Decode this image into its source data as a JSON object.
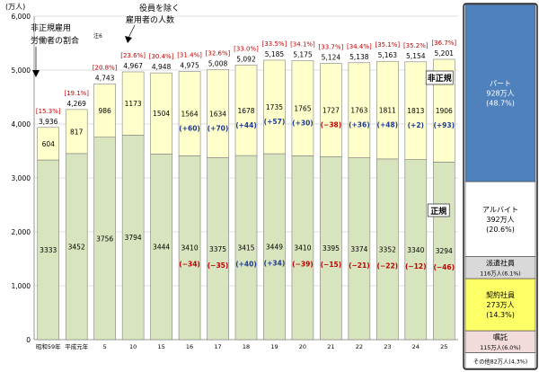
{
  "chart_data": {
    "type": "bar",
    "unit_label": "(万人)",
    "ylim": [
      0,
      6000
    ],
    "y_ticks": [
      "0",
      "1,000",
      "2,000",
      "3,000",
      "4,000",
      "5,000",
      "6,000"
    ],
    "categories": [
      "昭和59年",
      "平成元年",
      "5",
      "10",
      "15",
      "16",
      "17",
      "18",
      "19",
      "20",
      "21",
      "22",
      "23",
      "24",
      "25"
    ],
    "series": [
      {
        "name": "正規",
        "values": [
          3333,
          3452,
          3756,
          3794,
          3444,
          3410,
          3375,
          3415,
          3449,
          3410,
          3395,
          3374,
          3352,
          3340,
          3294
        ]
      },
      {
        "name": "非正規",
        "values": [
          604,
          817,
          986,
          1173,
          1504,
          1564,
          1634,
          1678,
          1735,
          1765,
          1727,
          1763,
          1811,
          1813,
          1906
        ]
      }
    ],
    "totals": [
      3936,
      4269,
      4743,
      4967,
      4948,
      4975,
      5008,
      5092,
      5185,
      5175,
      5124,
      5138,
      5163,
      5154,
      5201
    ],
    "ratios": [
      "[15.3%]",
      "[19.1%]",
      "[20.8%]",
      "[23.6%]",
      "[30.4%]",
      "[31.4%]",
      "[32.6%]",
      "[33.0%]",
      "[33.5%]",
      "[34.1%]",
      "[33.7%]",
      "[34.4%]",
      "[35.1%]",
      "[35.2%]",
      "[36.7%]"
    ],
    "irregular_changes": [
      "",
      "",
      "",
      "",
      "",
      "(+60)",
      "(+70)",
      "(+44)",
      "(+57)",
      "(+30)",
      "(−38)",
      "(+36)",
      "(+48)",
      "(+2)",
      "(+93)"
    ],
    "regular_changes": [
      "",
      "",
      "",
      "",
      "",
      "(−34)",
      "(−35)",
      "(+40)",
      "(+34)",
      "(−39)",
      "(−15)",
      "(−21)",
      "(−22)",
      "(−12)",
      "(−46)"
    ],
    "annotations": {
      "ratio_label": [
        "非正規雇用",
        "労働者の割合"
      ],
      "ratio_note": "注6",
      "employee_label": [
        "役員を除く",
        "雇用者の人数"
      ],
      "irregular_tag": "非正規",
      "regular_tag": "正規"
    },
    "breakdown": [
      {
        "lines": [
          "パート",
          "928万人",
          "(48.7%)"
        ],
        "value": 928,
        "color": "#4f81bd",
        "text_color": "#ffffff"
      },
      {
        "lines": [
          "アルバイト",
          "392万人",
          "(20.6%)"
        ],
        "value": 392,
        "color": "#ffffff",
        "text_color": "#000000"
      },
      {
        "lines": [
          "派遣社員",
          "116万人(6.1%)"
        ],
        "value": 116,
        "color": "#d9d9d9",
        "text_color": "#000000"
      },
      {
        "lines": [
          "契約社員",
          "273万人",
          "(14.3%)"
        ],
        "value": 273,
        "color": "#ffff66",
        "text_color": "#000000"
      },
      {
        "lines": [
          "嘱託",
          "115万人(6.0%)"
        ],
        "value": 115,
        "color": "#f2dcdb",
        "text_color": "#000000"
      },
      {
        "lines": [
          "その他82万人(4.3%)"
        ],
        "value": 82,
        "color": "#ffffff",
        "text_color": "#000000"
      }
    ],
    "colors": {
      "regular": "#d7e4bd",
      "irregular": "#ffffcc",
      "ratio_text": "#c00000",
      "negative": "#c00000",
      "positive": "#1f3a93"
    }
  }
}
